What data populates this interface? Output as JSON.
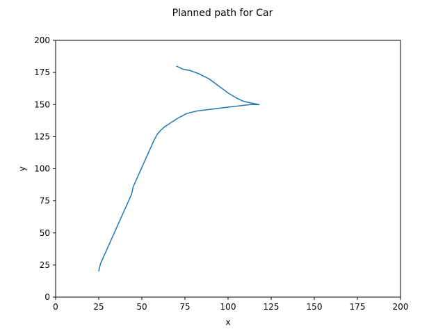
{
  "chart_data": {
    "type": "line",
    "title": "Planned path for Car",
    "xlabel": "x",
    "ylabel": "y",
    "xlim": [
      0,
      200
    ],
    "ylim": [
      0,
      200
    ],
    "xticks": [
      0,
      25,
      50,
      75,
      100,
      125,
      150,
      175,
      200
    ],
    "yticks": [
      0,
      25,
      50,
      75,
      100,
      125,
      150,
      175,
      200
    ],
    "grid": false,
    "series": [
      {
        "color": "#1f77b4",
        "x": [
          25,
          26,
          44,
          45,
          57,
          59,
          61,
          63,
          67,
          71,
          76,
          82,
          97,
          113,
          118,
          114,
          109,
          105,
          100,
          96,
          92,
          89,
          86,
          83,
          78,
          74,
          70
        ],
        "y": [
          20,
          26,
          80,
          86,
          122,
          127,
          130,
          132.5,
          136,
          139.5,
          143,
          145,
          147.5,
          150,
          150,
          151,
          152.5,
          155,
          159,
          163,
          167,
          170,
          172,
          174,
          176.5,
          177.5,
          180
        ]
      }
    ]
  }
}
